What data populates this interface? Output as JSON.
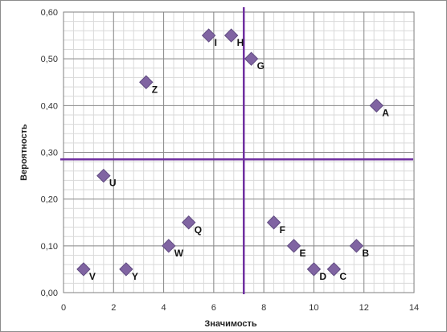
{
  "chart_data": {
    "type": "scatter",
    "title": "",
    "xlabel": "Значимость",
    "ylabel": "Вероятность",
    "xlim": [
      0,
      14
    ],
    "ylim": [
      0,
      0.6
    ],
    "x_ticks": [
      0,
      2,
      4,
      6,
      8,
      10,
      12,
      14
    ],
    "x_tick_labels": [
      "0",
      "2",
      "4",
      "6",
      "8",
      "10",
      "12",
      "14"
    ],
    "y_ticks": [
      0,
      0.1,
      0.2,
      0.3,
      0.4,
      0.5,
      0.6
    ],
    "y_tick_labels": [
      "0,00",
      "0,10",
      "0,20",
      "0,30",
      "0,40",
      "0,50",
      "0,60"
    ],
    "grid": true,
    "marker": "diamond",
    "marker_color": "#8064a2",
    "reference_lines": {
      "color": "#7030a0",
      "vertical_x": 7.2,
      "horizontal_y": 0.285
    },
    "points": [
      {
        "label": "A",
        "x": 12.5,
        "y": 0.4
      },
      {
        "label": "B",
        "x": 11.7,
        "y": 0.1
      },
      {
        "label": "C",
        "x": 10.8,
        "y": 0.05
      },
      {
        "label": "D",
        "x": 10.0,
        "y": 0.05
      },
      {
        "label": "E",
        "x": 9.2,
        "y": 0.1
      },
      {
        "label": "F",
        "x": 8.4,
        "y": 0.15
      },
      {
        "label": "G",
        "x": 7.5,
        "y": 0.5
      },
      {
        "label": "H",
        "x": 6.7,
        "y": 0.55
      },
      {
        "label": "I",
        "x": 5.8,
        "y": 0.55
      },
      {
        "label": "Q",
        "x": 5.0,
        "y": 0.15
      },
      {
        "label": "W",
        "x": 4.2,
        "y": 0.1
      },
      {
        "label": "Z",
        "x": 3.3,
        "y": 0.45
      },
      {
        "label": "Y",
        "x": 2.5,
        "y": 0.05
      },
      {
        "label": "U",
        "x": 1.6,
        "y": 0.25
      },
      {
        "label": "V",
        "x": 0.8,
        "y": 0.05
      }
    ]
  }
}
